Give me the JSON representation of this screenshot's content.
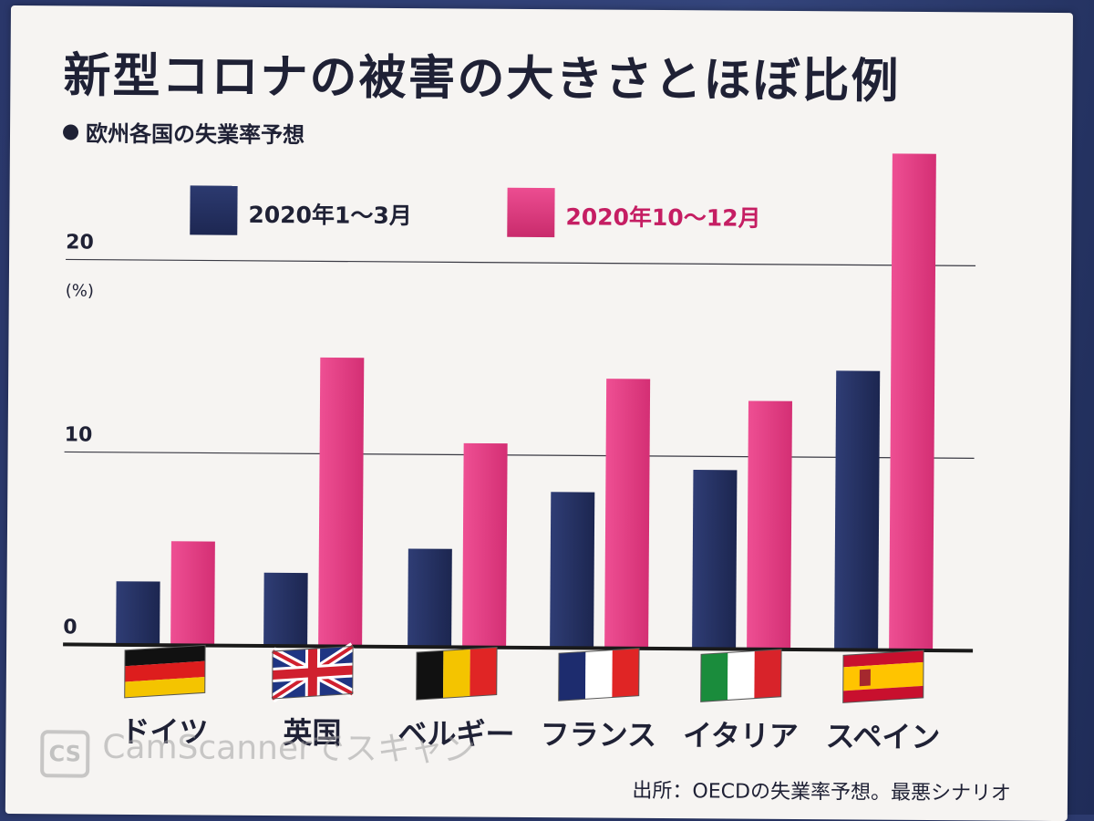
{
  "title": "新型コロナの被害の大きさとほぼ比例",
  "subtitle": "欧州各国の失業率予想",
  "legend": [
    {
      "label": "2020年1～3月",
      "color": "#253163"
    },
    {
      "label": "2020年10～12月",
      "color": "#e63c85"
    }
  ],
  "source": "出所：OECDの失業率予想。最悪シナリオ",
  "watermark": {
    "logo": "CS",
    "text": "CamScannerでスキャン"
  },
  "chart_data": {
    "type": "bar",
    "title": "新型コロナの被害の大きさとほぼ比例",
    "subtitle": "欧州各国の失業率予想",
    "categories": [
      "ドイツ",
      "英国",
      "ベルギー",
      "フランス",
      "イタリア",
      "スペイン"
    ],
    "series": [
      {
        "name": "2020年1～3月",
        "color": "#253163",
        "values": [
          3.3,
          3.8,
          5.1,
          8.1,
          9.3,
          14.5
        ]
      },
      {
        "name": "2020年10～12月",
        "color": "#e63c85",
        "values": [
          5.4,
          15.0,
          10.6,
          14.0,
          12.9,
          25.8
        ]
      }
    ],
    "yunit": "(%)",
    "yticks": [
      0,
      10,
      20
    ],
    "ylim": [
      0,
      26
    ],
    "grid": true,
    "legend_position": "top"
  }
}
